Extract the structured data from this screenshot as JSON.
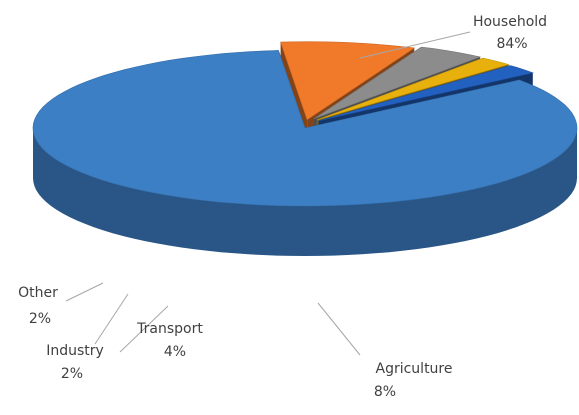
{
  "chart_data": {
    "type": "pie",
    "style": "3d-exploded",
    "slices": [
      {
        "name": "Household",
        "value": 84,
        "label": "84%",
        "color": "#3c7fc5"
      },
      {
        "name": "Agriculture",
        "value": 8,
        "label": "8%",
        "color": "#f07a2a"
      },
      {
        "name": "Transport",
        "value": 4,
        "label": "4%",
        "color": "#8c8c8c"
      },
      {
        "name": "Industry",
        "value": 2,
        "label": "2%",
        "color": "#e8b00c"
      },
      {
        "name": "Other",
        "value": 2,
        "label": "2%",
        "color": "#2361c0"
      }
    ],
    "legend": "none"
  }
}
